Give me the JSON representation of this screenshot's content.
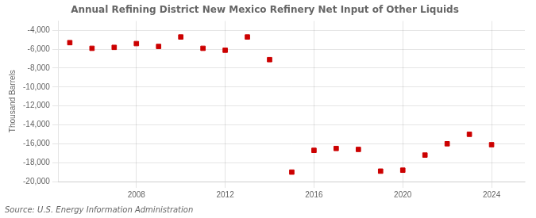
{
  "chart_data": {
    "type": "scatter",
    "title": "Annual Refining District New Mexico Refinery Net Input of Other Liquids",
    "ylabel": "Thousand Barrels",
    "annotations": [
      "Source: U.S. Energy Information Administration"
    ],
    "x": [
      2005,
      2006,
      2007,
      2008,
      2009,
      2010,
      2011,
      2012,
      2013,
      2014,
      2015,
      2016,
      2017,
      2018,
      2019,
      2020,
      2021,
      2022,
      2023,
      2024
    ],
    "values": [
      -5300,
      -5900,
      -5800,
      -5400,
      -5700,
      -4700,
      -5900,
      -6100,
      -4700,
      -7100,
      -19000,
      -16700,
      -16500,
      -16600,
      -18900,
      -18800,
      -17200,
      -16000,
      -15000,
      -16100
    ],
    "color": "#cc0000",
    "marker": "square",
    "xlim": [
      2004.5,
      2025.5
    ],
    "xticks": [
      2008,
      2012,
      2016,
      2020,
      2024
    ],
    "ylim": [
      -20000,
      -3000
    ],
    "yticks": [
      {
        "value": -20000,
        "label": "-20,000"
      },
      {
        "value": -18000,
        "label": "-18,000"
      },
      {
        "value": -16000,
        "label": "-16,000"
      },
      {
        "value": -14000,
        "label": "-14,000"
      },
      {
        "value": -12000,
        "label": "-12,000"
      },
      {
        "value": -10000,
        "label": "-10,000"
      },
      {
        "value": -8000,
        "label": "-8,000"
      },
      {
        "value": -6000,
        "label": "-6,000"
      },
      {
        "value": -4000,
        "label": "-4,000"
      }
    ],
    "grid": true
  }
}
